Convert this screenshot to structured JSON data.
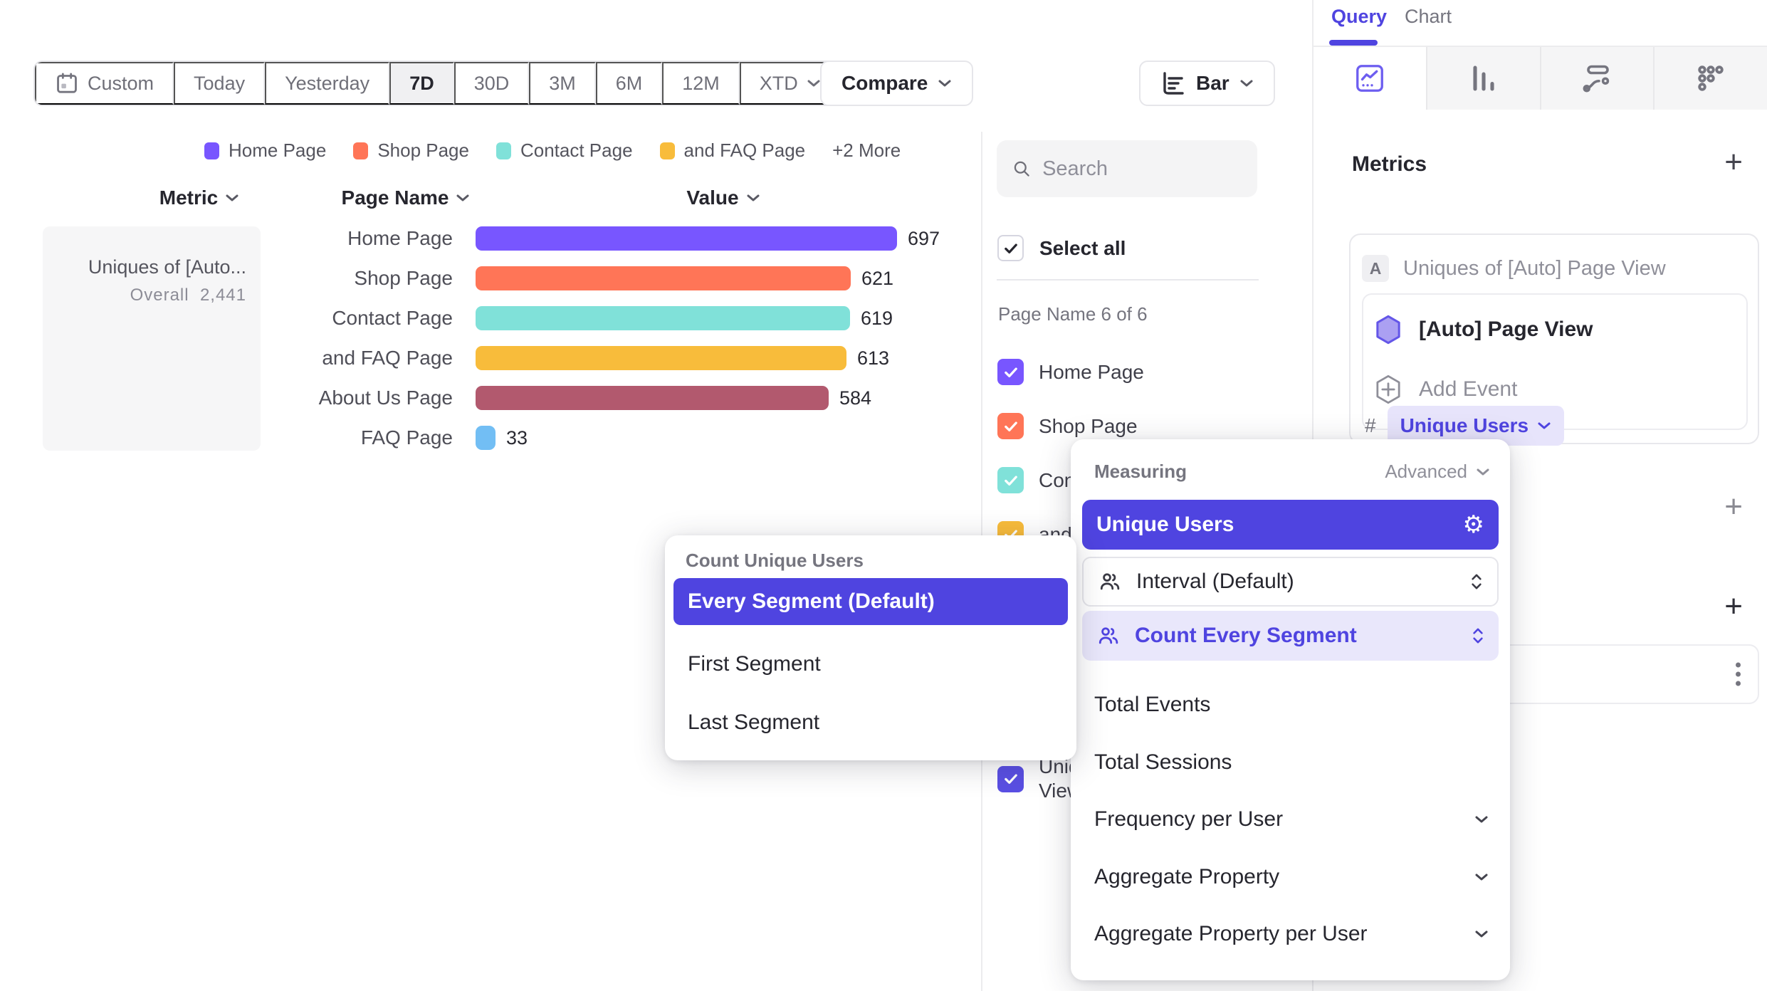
{
  "toolbar": {
    "ranges": [
      {
        "label": "Custom",
        "icon": "calendar-icon"
      },
      {
        "label": "Today"
      },
      {
        "label": "Yesterday"
      },
      {
        "label": "7D",
        "active": true
      },
      {
        "label": "30D"
      },
      {
        "label": "3M"
      },
      {
        "label": "6M"
      },
      {
        "label": "12M"
      },
      {
        "label": "XTD",
        "chevron": true
      }
    ],
    "compare_label": "Compare",
    "chart_type": {
      "label": "Bar",
      "icon": "horizontal-bar-chart-icon"
    }
  },
  "chart_data": {
    "type": "bar",
    "orientation": "horizontal",
    "columns": {
      "metric": "Metric",
      "category": "Page Name",
      "value": "Value"
    },
    "categories": [
      "Home Page",
      "Shop Page",
      "Contact Page",
      "and FAQ Page",
      "About Us Page",
      "FAQ Page"
    ],
    "values": [
      697,
      621,
      619,
      613,
      584,
      33
    ],
    "colors": [
      "#7856FF",
      "#FF7557",
      "#80E1D9",
      "#F8BC3B",
      "#B2596E",
      "#72BEF4"
    ],
    "value_labels": [
      "697",
      "621",
      "619",
      "613",
      "584",
      "33"
    ],
    "metric": {
      "name": "Uniques of [Auto...",
      "overall_label": "Overall",
      "overall_value": "2,441"
    },
    "legend": {
      "items": [
        {
          "label": "Home Page",
          "color": "#7856FF"
        },
        {
          "label": "Shop Page",
          "color": "#FF7557"
        },
        {
          "label": "Contact Page",
          "color": "#80E1D9"
        },
        {
          "label": "and FAQ Page",
          "color": "#F8BC3B"
        }
      ],
      "more_label": "+2 More"
    }
  },
  "filter_panel": {
    "search_placeholder": "Search",
    "select_all_label": "Select all",
    "group_label": "Page Name 6 of 6",
    "items": [
      {
        "label": "Home Page",
        "color": "#7856FF",
        "checked": true
      },
      {
        "label": "Shop Page",
        "color": "#FF7557",
        "checked": true
      },
      {
        "label": "Contact Page",
        "color": "#80E1D9",
        "checked": true
      },
      {
        "label": "and FAQ Page",
        "color": "#F8BC3B",
        "checked": true
      },
      {
        "label": "About Us Page",
        "color": "#B2596E",
        "checked": true
      },
      {
        "label": "FAQ Page",
        "color": "#72BEF4",
        "checked": true
      }
    ],
    "metric_item": {
      "label": "Uniques of [Auto] Page View",
      "color": "#5a4fe4",
      "checked": true
    }
  },
  "sidebar": {
    "tabs": [
      {
        "label": "Query",
        "active": true
      },
      {
        "label": "Chart",
        "active": false
      }
    ],
    "icon_tabs": [
      {
        "icon": "insights-icon",
        "active": true
      },
      {
        "icon": "bar-chart-icon",
        "active": false
      },
      {
        "icon": "flows-icon",
        "active": false
      },
      {
        "icon": "retention-icon",
        "active": false
      }
    ],
    "metrics": {
      "header": "Metrics",
      "add_label": "+",
      "card": {
        "badge": "A",
        "title": "Uniques of [Auto] Page View",
        "event_name": "[Auto] Page View",
        "add_event_label": "Add Event",
        "measure_prefix": "#",
        "measure_chip": "Unique Users"
      }
    },
    "filters_add_label": "+",
    "breakdown_add_label": "+"
  },
  "measuring_popover": {
    "title": "Measuring",
    "advanced_label": "Advanced",
    "selected": {
      "label": "Unique Users",
      "icon": "gear-icon"
    },
    "cards": [
      {
        "label": "Interval (Default)",
        "style": "outlined",
        "icon": "people-icon"
      },
      {
        "label": "Count Every Segment",
        "style": "highlight",
        "icon": "people-icon"
      }
    ],
    "options": [
      {
        "label": "Total Events",
        "chevron": false
      },
      {
        "label": "Total Sessions",
        "chevron": false
      },
      {
        "label": "Frequency per User",
        "chevron": true
      },
      {
        "label": "Aggregate Property",
        "chevron": true
      },
      {
        "label": "Aggregate Property per User",
        "chevron": true
      }
    ]
  },
  "segment_popover": {
    "title": "Count Unique Users",
    "options": [
      {
        "label": "Every Segment (Default)",
        "selected": true
      },
      {
        "label": "First Segment",
        "selected": false
      },
      {
        "label": "Last Segment",
        "selected": false
      }
    ]
  }
}
